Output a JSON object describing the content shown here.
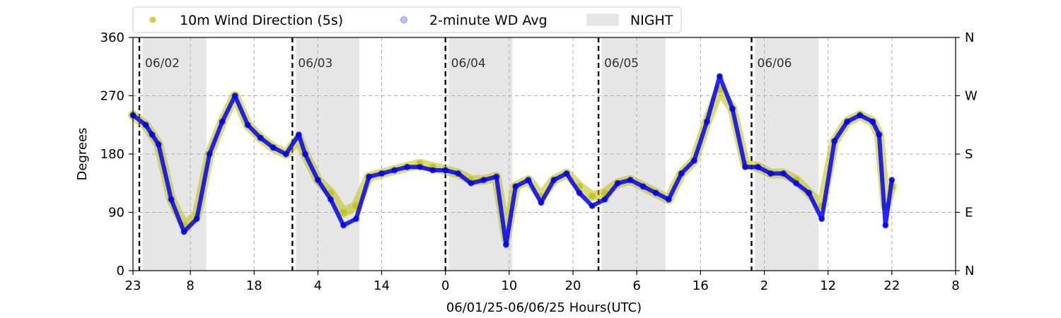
{
  "chart_data": {
    "type": "scatter",
    "xlabel": "06/01/25-06/06/25  Hours(UTC)",
    "ylabel": "Degrees",
    "ylim": [
      0,
      360
    ],
    "yticks": [
      0,
      90,
      180,
      270,
      360
    ],
    "right_ticks": [
      {
        "value": 0,
        "label": "N"
      },
      {
        "value": 90,
        "label": "E"
      },
      {
        "value": 180,
        "label": "S"
      },
      {
        "value": 270,
        "label": "W"
      },
      {
        "value": 360,
        "label": "N"
      }
    ],
    "x_start": "2025-06-01 23:00",
    "x_end": "2025-06-07 08:00",
    "xticks": [
      {
        "time": "2025-06-01 23:00",
        "label": "23"
      },
      {
        "time": "2025-06-02 08:00",
        "label": "8"
      },
      {
        "time": "2025-06-02 18:00",
        "label": "18"
      },
      {
        "time": "2025-06-03 04:00",
        "label": "4"
      },
      {
        "time": "2025-06-03 14:00",
        "label": "14"
      },
      {
        "time": "2025-06-04 00:00",
        "label": "0"
      },
      {
        "time": "2025-06-04 10:00",
        "label": "10"
      },
      {
        "time": "2025-06-04 20:00",
        "label": "20"
      },
      {
        "time": "2025-06-05 06:00",
        "label": "6"
      },
      {
        "time": "2025-06-05 16:00",
        "label": "16"
      },
      {
        "time": "2025-06-06 02:00",
        "label": "2"
      },
      {
        "time": "2025-06-06 12:00",
        "label": "12"
      },
      {
        "time": "2025-06-06 22:00",
        "label": "22"
      },
      {
        "time": "2025-06-07 08:00",
        "label": "8"
      }
    ],
    "day_markers": [
      {
        "time": "2025-06-02 00:00",
        "label": "06/02"
      },
      {
        "time": "2025-06-03 00:00",
        "label": "06/03"
      },
      {
        "time": "2025-06-04 00:00",
        "label": "06/04"
      },
      {
        "time": "2025-06-05 00:00",
        "label": "06/05"
      },
      {
        "time": "2025-06-06 00:00",
        "label": "06/06"
      }
    ],
    "night_periods": [
      {
        "start": "2025-06-02 00:30",
        "end": "2025-06-02 10:30"
      },
      {
        "start": "2025-06-03 00:30",
        "end": "2025-06-03 10:30"
      },
      {
        "start": "2025-06-04 00:30",
        "end": "2025-06-04 10:30"
      },
      {
        "start": "2025-06-05 00:30",
        "end": "2025-06-05 10:30"
      },
      {
        "start": "2025-06-06 00:30",
        "end": "2025-06-06 10:30"
      }
    ],
    "legend": {
      "placement": "top",
      "entries": [
        {
          "label": "10m Wind Direction (5s)",
          "color": "#bfbf00",
          "kind": "point"
        },
        {
          "label": "2-minute WD Avg",
          "color": "#0000ff",
          "kind": "point-faint"
        },
        {
          "label": "NIGHT",
          "color": "#e6e6e6",
          "kind": "patch"
        }
      ]
    },
    "grid": true,
    "series": [
      {
        "name": "10m Wind Direction (5s)",
        "color": "#bfbf00",
        "x": [
          "2025-06-01 23:00",
          "2025-06-02 01:00",
          "2025-06-02 02:00",
          "2025-06-02 03:00",
          "2025-06-02 05:00",
          "2025-06-02 07:00",
          "2025-06-02 09:00",
          "2025-06-02 11:00",
          "2025-06-02 13:00",
          "2025-06-02 15:00",
          "2025-06-02 17:00",
          "2025-06-02 19:00",
          "2025-06-02 21:00",
          "2025-06-02 23:00",
          "2025-06-03 01:00",
          "2025-06-03 02:00",
          "2025-06-03 04:00",
          "2025-06-03 06:00",
          "2025-06-03 08:00",
          "2025-06-03 10:00",
          "2025-06-03 12:00",
          "2025-06-03 14:00",
          "2025-06-03 16:00",
          "2025-06-03 18:00",
          "2025-06-03 20:00",
          "2025-06-03 22:00",
          "2025-06-04 00:00",
          "2025-06-04 02:00",
          "2025-06-04 04:00",
          "2025-06-04 06:00",
          "2025-06-04 08:00",
          "2025-06-04 09:30",
          "2025-06-04 11:00",
          "2025-06-04 13:00",
          "2025-06-04 15:00",
          "2025-06-04 17:00",
          "2025-06-04 19:00",
          "2025-06-04 21:00",
          "2025-06-04 23:00",
          "2025-06-05 01:00",
          "2025-06-05 03:00",
          "2025-06-05 05:00",
          "2025-06-05 07:00",
          "2025-06-05 09:00",
          "2025-06-05 11:00",
          "2025-06-05 13:00",
          "2025-06-05 15:00",
          "2025-06-05 17:00",
          "2025-06-05 19:00",
          "2025-06-05 21:00",
          "2025-06-05 23:00",
          "2025-06-06 01:00",
          "2025-06-06 03:00",
          "2025-06-06 05:00",
          "2025-06-06 07:00",
          "2025-06-06 09:00",
          "2025-06-06 11:00",
          "2025-06-06 13:00",
          "2025-06-06 15:00",
          "2025-06-06 17:00",
          "2025-06-06 19:00",
          "2025-06-06 20:00",
          "2025-06-06 21:00",
          "2025-06-06 22:00"
        ],
        "y": [
          240,
          225,
          210,
          195,
          110,
          70,
          85,
          180,
          230,
          270,
          225,
          205,
          190,
          180,
          205,
          180,
          140,
          120,
          90,
          100,
          145,
          150,
          155,
          160,
          165,
          160,
          155,
          150,
          140,
          140,
          145,
          50,
          130,
          140,
          115,
          140,
          150,
          130,
          115,
          120,
          135,
          140,
          130,
          120,
          110,
          150,
          170,
          230,
          280,
          250,
          165,
          160,
          150,
          150,
          140,
          120,
          100,
          200,
          230,
          240,
          230,
          210,
          100,
          130
        ]
      },
      {
        "name": "2-minute WD Avg",
        "color": "#0000ff",
        "x": [
          "2025-06-01 23:00",
          "2025-06-02 01:00",
          "2025-06-02 02:00",
          "2025-06-02 03:00",
          "2025-06-02 05:00",
          "2025-06-02 07:00",
          "2025-06-02 09:00",
          "2025-06-02 11:00",
          "2025-06-02 13:00",
          "2025-06-02 15:00",
          "2025-06-02 17:00",
          "2025-06-02 19:00",
          "2025-06-02 21:00",
          "2025-06-02 23:00",
          "2025-06-03 01:00",
          "2025-06-03 02:00",
          "2025-06-03 04:00",
          "2025-06-03 06:00",
          "2025-06-03 08:00",
          "2025-06-03 10:00",
          "2025-06-03 12:00",
          "2025-06-03 14:00",
          "2025-06-03 16:00",
          "2025-06-03 18:00",
          "2025-06-03 20:00",
          "2025-06-03 22:00",
          "2025-06-04 00:00",
          "2025-06-04 02:00",
          "2025-06-04 04:00",
          "2025-06-04 06:00",
          "2025-06-04 08:00",
          "2025-06-04 09:30",
          "2025-06-04 11:00",
          "2025-06-04 13:00",
          "2025-06-04 15:00",
          "2025-06-04 17:00",
          "2025-06-04 19:00",
          "2025-06-04 21:00",
          "2025-06-04 23:00",
          "2025-06-05 01:00",
          "2025-06-05 03:00",
          "2025-06-05 05:00",
          "2025-06-05 07:00",
          "2025-06-05 09:00",
          "2025-06-05 11:00",
          "2025-06-05 13:00",
          "2025-06-05 15:00",
          "2025-06-05 17:00",
          "2025-06-05 19:00",
          "2025-06-05 21:00",
          "2025-06-05 23:00",
          "2025-06-06 01:00",
          "2025-06-06 03:00",
          "2025-06-06 05:00",
          "2025-06-06 07:00",
          "2025-06-06 09:00",
          "2025-06-06 11:00",
          "2025-06-06 13:00",
          "2025-06-06 15:00",
          "2025-06-06 17:00",
          "2025-06-06 19:00",
          "2025-06-06 20:00",
          "2025-06-06 21:00",
          "2025-06-06 22:00"
        ],
        "y": [
          240,
          225,
          210,
          195,
          110,
          60,
          80,
          180,
          230,
          270,
          225,
          205,
          190,
          180,
          210,
          180,
          140,
          110,
          70,
          80,
          145,
          150,
          155,
          160,
          160,
          155,
          155,
          150,
          135,
          140,
          145,
          40,
          130,
          140,
          105,
          140,
          150,
          120,
          100,
          110,
          135,
          140,
          130,
          120,
          110,
          150,
          170,
          230,
          300,
          250,
          160,
          160,
          150,
          150,
          135,
          120,
          80,
          200,
          230,
          240,
          230,
          210,
          70,
          140
        ]
      }
    ]
  }
}
